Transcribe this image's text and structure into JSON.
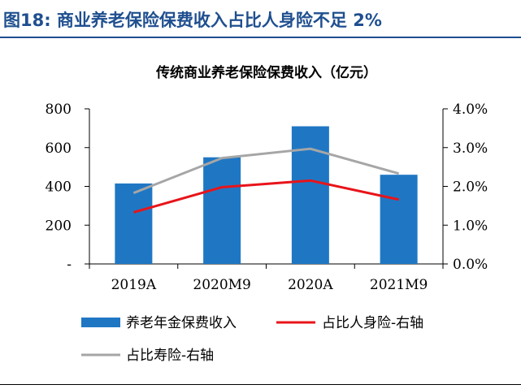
{
  "figure": {
    "title": "图18:  商业养老保险保费收入占比人身险不足 2%"
  },
  "colors": {
    "header_text": "#1f4f8f",
    "header_rule": "#1f4f8f",
    "bar": "#1f77c4",
    "line_life": "#e8141a",
    "line_longevity": "#a6a6a6",
    "axis": "#000000"
  },
  "chart_data": {
    "type": "bar",
    "title": "传统商业养老保险保费收入（亿元）",
    "categories": [
      "2019A",
      "2020M9",
      "2020A",
      "2021M9"
    ],
    "series": [
      {
        "name": "养老年金保费收入",
        "type": "bar",
        "axis": "left",
        "values": [
          415,
          550,
          710,
          460
        ]
      },
      {
        "name": "占比人身险-右轴",
        "type": "line",
        "axis": "right",
        "values": [
          0.0133,
          0.0198,
          0.0215,
          0.0166
        ]
      },
      {
        "name": "占比寿险-右轴",
        "type": "line",
        "axis": "right",
        "values": [
          0.0183,
          0.0273,
          0.0297,
          0.0233
        ]
      }
    ],
    "y_left": {
      "lim": [
        0,
        800
      ],
      "ticks": [
        0,
        200,
        400,
        600,
        800
      ],
      "tick_labels": [
        "-",
        "200",
        "400",
        "600",
        "800"
      ]
    },
    "y_right": {
      "lim": [
        0,
        0.04
      ],
      "ticks": [
        0,
        0.01,
        0.02,
        0.03,
        0.04
      ],
      "tick_labels": [
        "0.0%",
        "1.0%",
        "2.0%",
        "3.0%",
        "4.0%"
      ]
    },
    "grid": false,
    "legend_position": "bottom"
  }
}
